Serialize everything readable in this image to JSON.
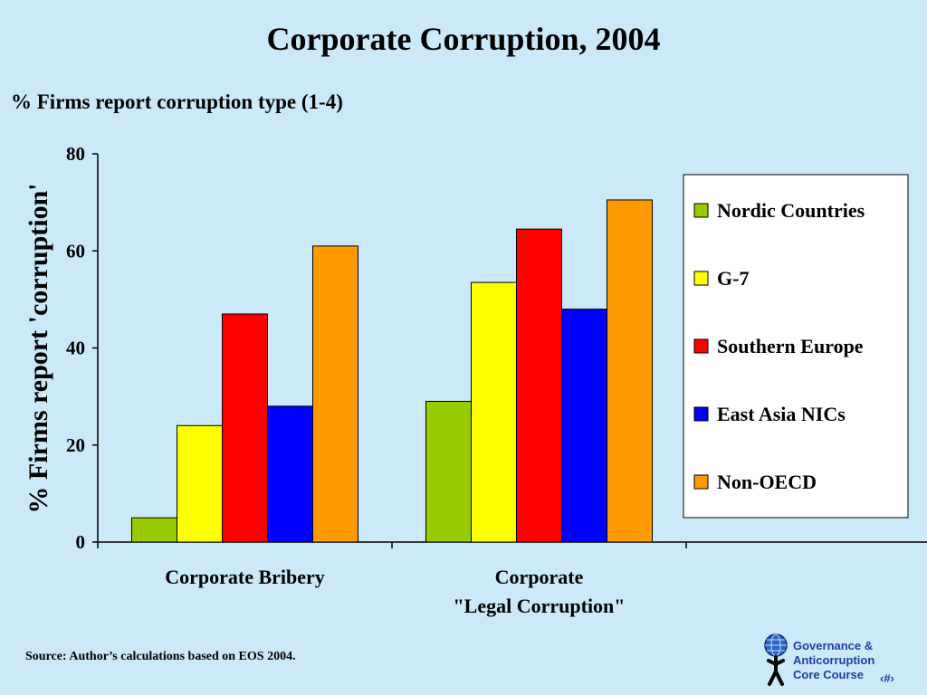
{
  "slide": {
    "title": "Corporate Corruption, 2004",
    "subtitle": "% Firms report corruption type (1-4)",
    "source": "Source: Author’s calculations based on EOS 2004.",
    "logo_lines": [
      "Governance &",
      "Anticorruption",
      "Core Course"
    ],
    "page_marker": "‹#›"
  },
  "chart_data": {
    "type": "bar",
    "title": "",
    "xlabel": "",
    "ylabel": "% Firms report 'corruption'",
    "ylim": [
      0,
      80
    ],
    "yticks": [
      0,
      20,
      40,
      60,
      80
    ],
    "grid": false,
    "legend_position": "right",
    "categories": [
      [
        "Corporate Bribery"
      ],
      [
        "Corporate",
        "\"Legal Corruption\""
      ]
    ],
    "series": [
      {
        "name": "Nordic Countries",
        "color": "#99cc00",
        "values": [
          5,
          29
        ]
      },
      {
        "name": "G-7",
        "color": "#ffff00",
        "values": [
          24,
          53.5
        ]
      },
      {
        "name": "Southern Europe",
        "color": "#ff0000",
        "values": [
          47,
          64.5
        ]
      },
      {
        "name": "East Asia NICs",
        "color": "#0000ff",
        "values": [
          28,
          48
        ]
      },
      {
        "name": "Non-OECD",
        "color": "#ff9900",
        "values": [
          61,
          70.5
        ]
      }
    ]
  }
}
